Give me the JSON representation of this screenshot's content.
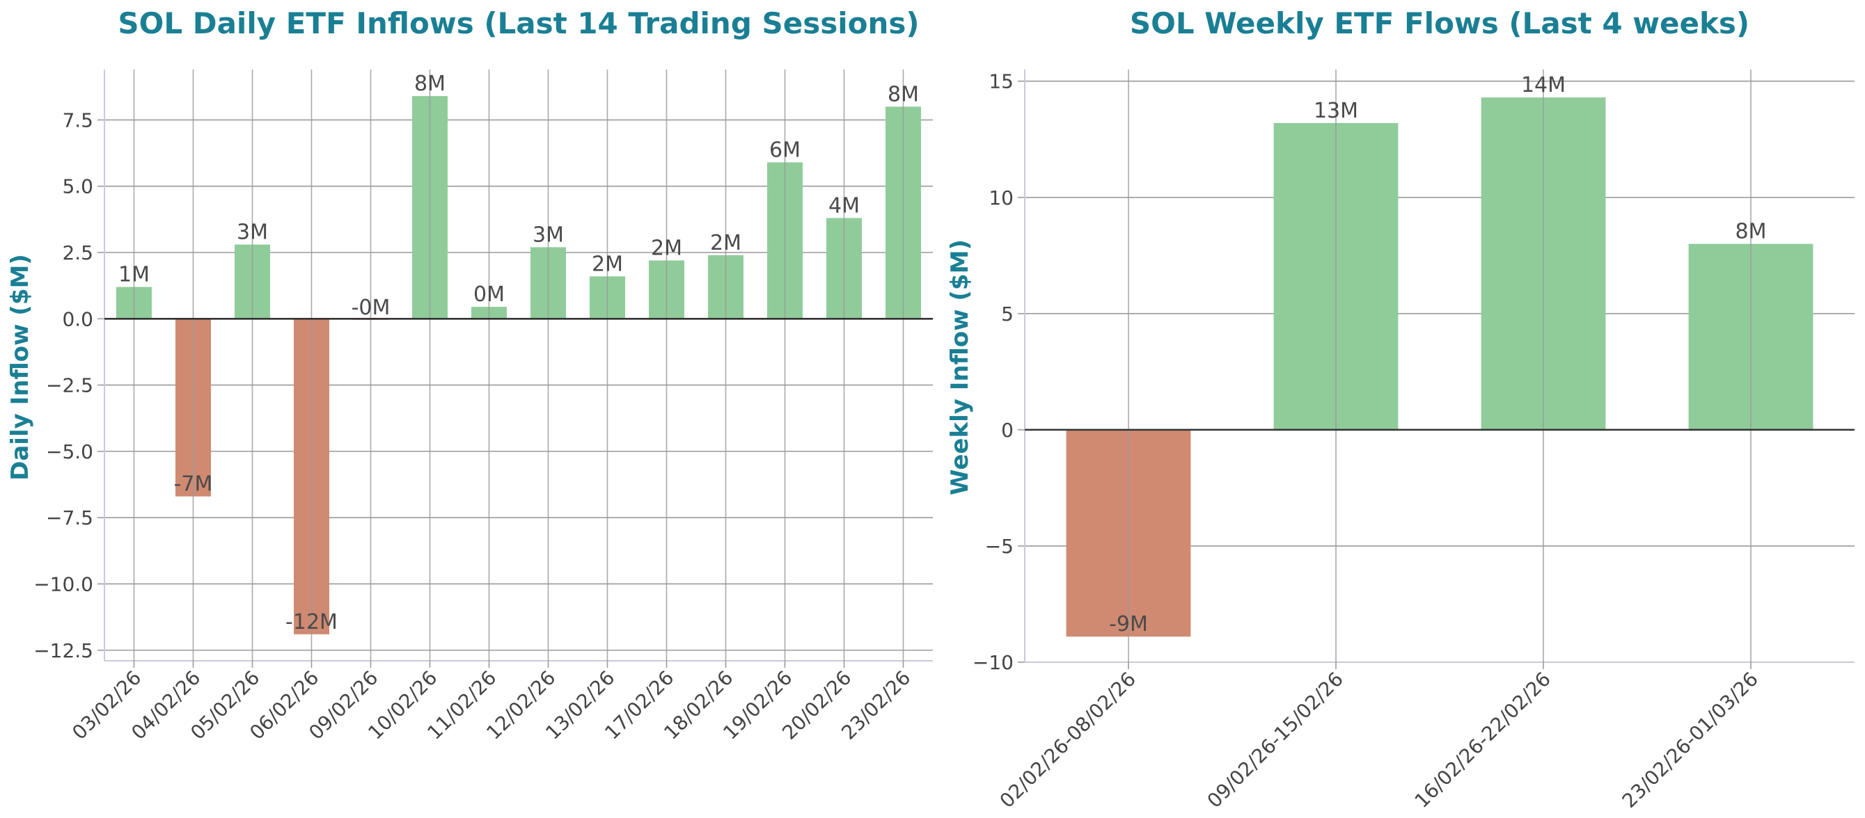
{
  "colors": {
    "positive": "#8fcc9a",
    "negative": "#d08a72",
    "title": "#1a7f94"
  },
  "chart_data": [
    {
      "type": "bar",
      "title": "SOL Daily ETF Inflows (Last 14 Trading Sessions)",
      "xlabel": "",
      "ylabel": "Daily Inflow ($M)",
      "ylim": [
        -12.9,
        9.4
      ],
      "yticks": [
        -12.5,
        -10.0,
        -7.5,
        -5.0,
        -2.5,
        0.0,
        2.5,
        5.0,
        7.5
      ],
      "ytick_labels": [
        "−12.5",
        "−10.0",
        "−7.5",
        "−5.0",
        "−2.5",
        "0.0",
        "2.5",
        "5.0",
        "7.5"
      ],
      "categories": [
        "03/02/26",
        "04/02/26",
        "05/02/26",
        "06/02/26",
        "09/02/26",
        "10/02/26",
        "11/02/26",
        "12/02/26",
        "13/02/26",
        "17/02/26",
        "18/02/26",
        "19/02/26",
        "20/02/26",
        "23/02/26"
      ],
      "values": [
        1.2,
        -6.7,
        2.8,
        -11.9,
        -0.04,
        8.4,
        0.45,
        2.7,
        1.6,
        2.2,
        2.4,
        5.9,
        3.8,
        8.0
      ],
      "data_labels": [
        "1M",
        "-7M",
        "3M",
        "-12M",
        "-0M",
        "8M",
        "0M",
        "3M",
        "2M",
        "2M",
        "2M",
        "6M",
        "4M",
        "8M"
      ]
    },
    {
      "type": "bar",
      "title": "SOL Weekly ETF Flows (Last 4 weeks)",
      "xlabel": "",
      "ylabel": "Weekly Inflow ($M)",
      "ylim": [
        -10,
        15.5
      ],
      "yticks": [
        -10,
        -5,
        0,
        5,
        10,
        15
      ],
      "ytick_labels": [
        "−10",
        "−5",
        "0",
        "5",
        "10",
        "15"
      ],
      "categories": [
        "02/02/26-08/02/26",
        "09/02/26-15/02/26",
        "16/02/26-22/02/26",
        "23/02/26-01/03/26"
      ],
      "values": [
        -8.9,
        13.2,
        14.3,
        8.0
      ],
      "data_labels": [
        "-9M",
        "13M",
        "14M",
        "8M"
      ]
    }
  ]
}
